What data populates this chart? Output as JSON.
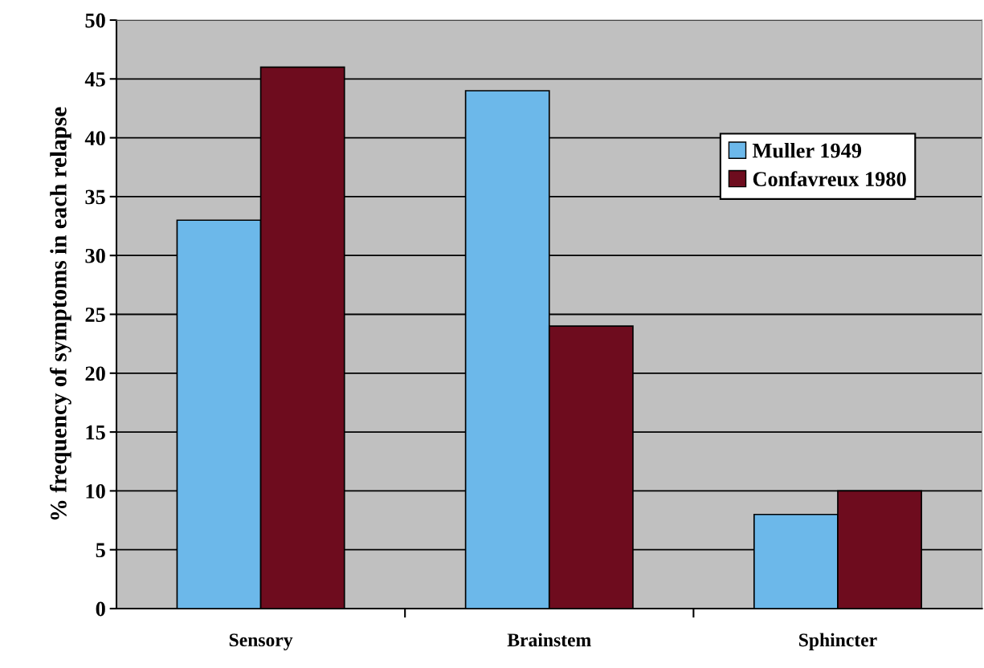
{
  "chart_data": {
    "type": "bar",
    "ylabel": "% frequency of symptoms in each relapse",
    "categories": [
      "Sensory",
      "Brainstem",
      "Sphincter"
    ],
    "series": [
      {
        "name": "Muller 1949",
        "color": "#6cb8ea",
        "values": [
          33,
          44,
          8
        ]
      },
      {
        "name": "Confavreux 1980",
        "color": "#6e0c1e",
        "values": [
          46,
          24,
          10
        ]
      }
    ],
    "ylim": [
      0,
      50
    ],
    "yticks": [
      0,
      5,
      10,
      15,
      20,
      25,
      30,
      35,
      40,
      45,
      50
    ],
    "grid": "y",
    "legend": "top right"
  }
}
